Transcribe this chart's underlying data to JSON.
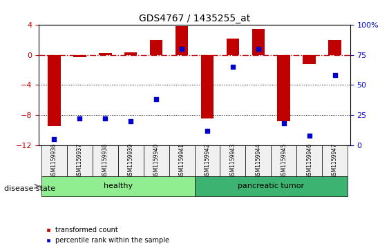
{
  "title": "GDS4767 / 1435255_at",
  "samples": [
    "GSM1159936",
    "GSM1159937",
    "GSM1159938",
    "GSM1159939",
    "GSM1159940",
    "GSM1159941",
    "GSM1159942",
    "GSM1159943",
    "GSM1159944",
    "GSM1159945",
    "GSM1159946",
    "GSM1159947"
  ],
  "bar_values": [
    -9.5,
    -0.3,
    0.3,
    0.4,
    2.0,
    3.8,
    -8.5,
    2.2,
    3.5,
    -8.8,
    -1.2,
    2.0
  ],
  "dot_values": [
    5,
    22,
    22,
    20,
    38,
    80,
    12,
    65,
    80,
    18,
    8,
    58
  ],
  "ylim_left": [
    -12,
    4
  ],
  "ylim_right": [
    0,
    100
  ],
  "yticks_left": [
    -12,
    -8,
    -4,
    0,
    4
  ],
  "yticks_right": [
    0,
    25,
    50,
    75,
    100
  ],
  "healthy_count": 6,
  "bar_color": "#C00000",
  "dot_color": "#0000CC",
  "healthy_color": "#90EE90",
  "tumor_color": "#3CB371",
  "grid_color": "black",
  "zero_line_color": "#C00000",
  "bg_color": "#F0F0F0",
  "label_healthy": "healthy",
  "label_tumor": "pancreatic tumor",
  "legend_bar": "transformed count",
  "legend_dot": "percentile rank within the sample",
  "disease_state_label": "disease state"
}
